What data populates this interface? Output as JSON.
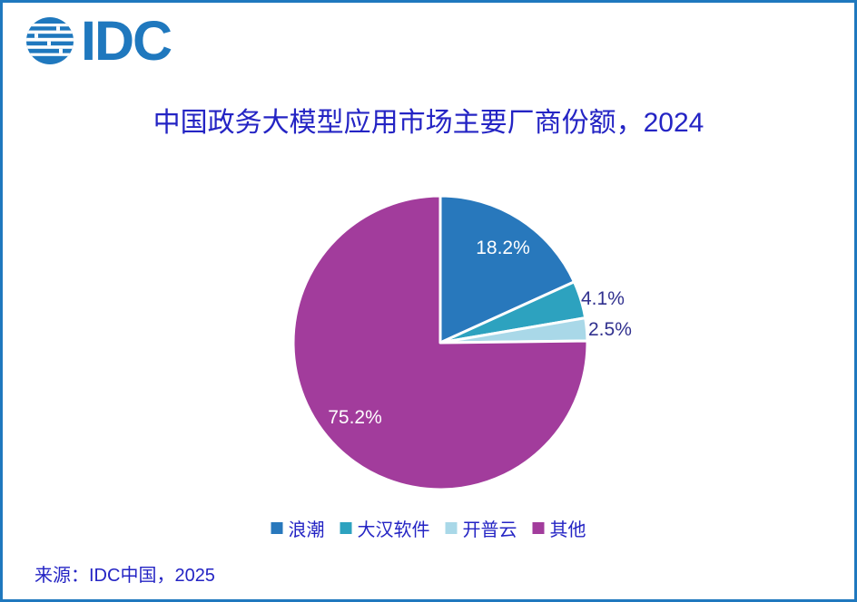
{
  "logo": {
    "text": "IDC"
  },
  "chart_data": {
    "type": "pie",
    "title": "中国政务大模型应用市场主要厂商份额，2024",
    "start_angle_deg": 0,
    "direction": "clockwise",
    "legend_position": "bottom",
    "slices": [
      {
        "name": "浪潮",
        "value": 18.2,
        "label": "18.2%",
        "color": "#2878BC",
        "label_color": "#FFFFFF",
        "label_position": "inside"
      },
      {
        "name": "大汉软件",
        "value": 4.1,
        "label": "4.1%",
        "color": "#2DA2BF",
        "label_color": "#31318F",
        "label_position": "outside"
      },
      {
        "name": "开普云",
        "value": 2.5,
        "label": "2.5%",
        "color": "#A9D8E8",
        "label_color": "#31318F",
        "label_position": "outside"
      },
      {
        "name": "其他",
        "value": 75.2,
        "label": "75.2%",
        "color": "#A23C9C",
        "label_color": "#FFFFFF",
        "label_position": "inside"
      }
    ]
  },
  "footer": {
    "source": "来源：IDC中国，2025"
  },
  "colors": {
    "frame_border": "#1F78BE",
    "logo_blue": "#1F78BE",
    "title_text": "#2424C4",
    "legend_text": "#2424C4",
    "source_text": "#2424C4",
    "background": "#FFFFFF",
    "slice_separator": "#FFFFFF"
  }
}
